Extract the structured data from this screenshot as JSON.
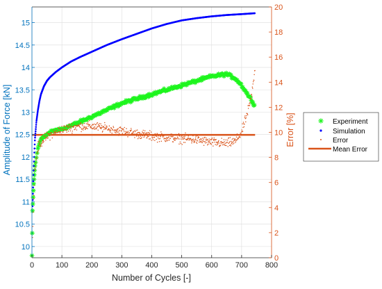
{
  "colors": {
    "left_axis": "#0072BD",
    "right_axis": "#D95319",
    "experiment": "#1EF51E",
    "simulation": "#0000FF",
    "error": "#D95319",
    "mean_error": "#D95319",
    "grid": "#DCDCDC",
    "axis": "#262626"
  },
  "chart_data": {
    "type": "scatter",
    "xlabel": "Number of Cycles [-]",
    "ylabel_left": "Amplitude of Force [kN]",
    "ylabel_right": "Error [%]",
    "xlim": [
      0,
      800
    ],
    "ylim_left": [
      9.75,
      15.35
    ],
    "ylim_right": [
      0,
      20
    ],
    "x_ticks": [
      0,
      100,
      200,
      300,
      400,
      500,
      600,
      700,
      800
    ],
    "y_ticks_left": [
      10,
      10.5,
      11,
      11.5,
      12,
      12.5,
      13,
      13.5,
      14,
      14.5,
      15
    ],
    "y_ticks_right": [
      0,
      2,
      4,
      6,
      8,
      10,
      12,
      14,
      16,
      18,
      20
    ],
    "grid": true,
    "legend_position": "right",
    "series": [
      {
        "name": "Experiment",
        "axis": "left",
        "marker": "asterisk",
        "x": [
          0,
          2,
          4,
          6,
          8,
          10,
          15,
          20,
          30,
          40,
          50,
          60,
          80,
          100,
          130,
          160,
          200,
          250,
          300,
          350,
          400,
          450,
          500,
          550,
          600,
          650,
          680,
          700,
          720,
          740,
          745
        ],
        "y": [
          9.8,
          10.8,
          11.1,
          11.4,
          11.6,
          11.8,
          12.0,
          12.2,
          12.4,
          12.45,
          12.5,
          12.55,
          12.6,
          12.62,
          12.7,
          12.78,
          12.9,
          13.05,
          13.2,
          13.3,
          13.4,
          13.5,
          13.6,
          13.7,
          13.8,
          13.85,
          13.75,
          13.6,
          13.4,
          13.2,
          13.15
        ]
      },
      {
        "name": "Simulation",
        "axis": "left",
        "marker": "dot",
        "x": [
          2,
          5,
          8,
          10,
          15,
          20,
          25,
          30,
          40,
          50,
          60,
          80,
          100,
          130,
          160,
          200,
          250,
          300,
          350,
          400,
          450,
          500,
          550,
          600,
          650,
          700,
          745
        ],
        "y": [
          10.9,
          11.6,
          12.1,
          12.4,
          12.8,
          13.05,
          13.25,
          13.4,
          13.58,
          13.7,
          13.78,
          13.9,
          14.0,
          14.13,
          14.23,
          14.35,
          14.5,
          14.63,
          14.75,
          14.87,
          14.97,
          15.05,
          15.1,
          15.14,
          15.17,
          15.19,
          15.21
        ]
      },
      {
        "name": "Error",
        "axis": "right",
        "marker": "point",
        "x": [
          2,
          5,
          10,
          20,
          30,
          40,
          60,
          80,
          100,
          130,
          160,
          200,
          250,
          300,
          350,
          400,
          450,
          500,
          550,
          600,
          650,
          680,
          700,
          710,
          720,
          730,
          740,
          745
        ],
        "y": [
          1.5,
          4.5,
          7.0,
          8.8,
          9.2,
          9.5,
          9.8,
          10.0,
          10.2,
          10.4,
          10.5,
          10.5,
          10.3,
          10.1,
          9.9,
          9.7,
          9.6,
          9.5,
          9.4,
          9.2,
          9.1,
          9.3,
          10.0,
          10.8,
          11.6,
          12.5,
          14.0,
          15.2
        ]
      },
      {
        "name": "Mean Error",
        "axis": "right",
        "marker": "line",
        "x": [
          0,
          745
        ],
        "y": [
          9.8,
          9.8
        ]
      }
    ]
  }
}
